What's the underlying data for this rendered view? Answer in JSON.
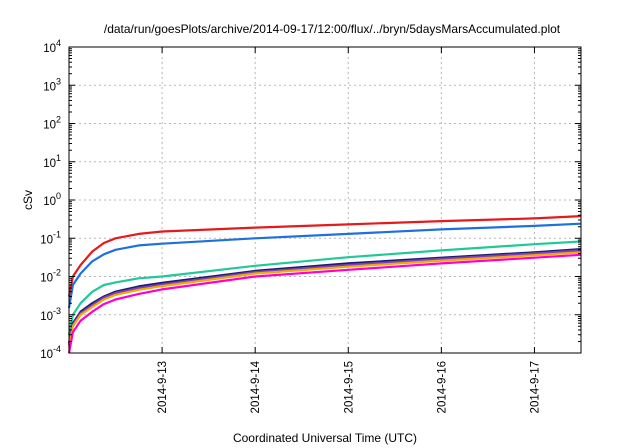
{
  "chart_data": {
    "type": "line",
    "title": "/data/run/goesPlots/archive/2014-09-17/12:00/flux/../bryn/5daysMarsAccumulated.plot",
    "xlabel": "Coordinated Universal Time (UTC)",
    "ylabel": "cSv",
    "x_range": [
      "2014-09-12",
      "2014-09-17 12:00"
    ],
    "x_ticks": [
      "2014-9-13",
      "2014-9-14",
      "2014-9-15",
      "2014-9-16",
      "2014-9-17"
    ],
    "y_scale": "log",
    "ylim": [
      0.0001,
      10000
    ],
    "y_ticks": [
      {
        "base": "10",
        "exp": "-4"
      },
      {
        "base": "10",
        "exp": "-3"
      },
      {
        "base": "10",
        "exp": "-2"
      },
      {
        "base": "10",
        "exp": "-1"
      },
      {
        "base": "10",
        "exp": "0"
      },
      {
        "base": "10",
        "exp": "1"
      },
      {
        "base": "10",
        "exp": "2"
      },
      {
        "base": "10",
        "exp": "3"
      },
      {
        "base": "10",
        "exp": "4"
      }
    ],
    "grid": true,
    "series": [
      {
        "color": "#e41a1c",
        "x": [
          "2014-09-12 00:00",
          "2014-09-12 01:00",
          "2014-09-12 03:00",
          "2014-09-12 06:00",
          "2014-09-12 09:00",
          "2014-09-12 12:00",
          "2014-09-12 18:00",
          "2014-09-13 00:00",
          "2014-09-14 00:00",
          "2014-09-15 00:00",
          "2014-09-16 00:00",
          "2014-09-17 00:00",
          "2014-09-17 12:00"
        ],
        "y": [
          0.003,
          0.01,
          0.02,
          0.045,
          0.075,
          0.1,
          0.13,
          0.15,
          0.19,
          0.23,
          0.28,
          0.33,
          0.38
        ]
      },
      {
        "color": "#1e6fe0",
        "x": [
          "2014-09-12 00:00",
          "2014-09-12 01:00",
          "2014-09-12 03:00",
          "2014-09-12 06:00",
          "2014-09-12 09:00",
          "2014-09-12 12:00",
          "2014-09-12 18:00",
          "2014-09-13 00:00",
          "2014-09-14 00:00",
          "2014-09-15 00:00",
          "2014-09-16 00:00",
          "2014-09-17 00:00",
          "2014-09-17 12:00"
        ],
        "y": [
          0.0015,
          0.006,
          0.012,
          0.025,
          0.038,
          0.05,
          0.065,
          0.072,
          0.1,
          0.13,
          0.17,
          0.21,
          0.24
        ]
      },
      {
        "color": "#20c997",
        "x": [
          "2014-09-12 00:00",
          "2014-09-12 01:00",
          "2014-09-12 03:00",
          "2014-09-12 06:00",
          "2014-09-12 09:00",
          "2014-09-12 12:00",
          "2014-09-12 18:00",
          "2014-09-13 00:00",
          "2014-09-14 00:00",
          "2014-09-15 00:00",
          "2014-09-16 00:00",
          "2014-09-17 00:00",
          "2014-09-17 12:00"
        ],
        "y": [
          0.0003,
          0.001,
          0.002,
          0.004,
          0.006,
          0.007,
          0.009,
          0.01,
          0.019,
          0.032,
          0.048,
          0.07,
          0.082
        ]
      },
      {
        "color": "#1b1b6e",
        "x": [
          "2014-09-12 00:00",
          "2014-09-12 01:00",
          "2014-09-12 03:00",
          "2014-09-12 06:00",
          "2014-09-12 09:00",
          "2014-09-12 12:00",
          "2014-09-12 18:00",
          "2014-09-13 00:00",
          "2014-09-14 00:00",
          "2014-09-15 00:00",
          "2014-09-16 00:00",
          "2014-09-17 00:00",
          "2014-09-17 12:00"
        ],
        "y": [
          0.00018,
          0.0006,
          0.0012,
          0.002,
          0.003,
          0.004,
          0.0055,
          0.0068,
          0.014,
          0.022,
          0.031,
          0.043,
          0.052
        ]
      },
      {
        "color": "#7b3fbf",
        "x": [
          "2014-09-12 00:00",
          "2014-09-12 01:00",
          "2014-09-12 03:00",
          "2014-09-12 06:00",
          "2014-09-12 09:00",
          "2014-09-12 12:00",
          "2014-09-12 18:00",
          "2014-09-13 00:00",
          "2014-09-14 00:00",
          "2014-09-15 00:00",
          "2014-09-16 00:00",
          "2014-09-17 00:00",
          "2014-09-17 12:00"
        ],
        "y": [
          0.00016,
          0.00055,
          0.0011,
          0.0018,
          0.0028,
          0.0037,
          0.005,
          0.0062,
          0.013,
          0.02,
          0.029,
          0.04,
          0.048
        ]
      },
      {
        "color": "#f2a900",
        "x": [
          "2014-09-12 00:00",
          "2014-09-12 01:00",
          "2014-09-12 03:00",
          "2014-09-12 06:00",
          "2014-09-12 09:00",
          "2014-09-12 12:00",
          "2014-09-12 18:00",
          "2014-09-13 00:00",
          "2014-09-14 00:00",
          "2014-09-15 00:00",
          "2014-09-16 00:00",
          "2014-09-17 00:00",
          "2014-09-17 12:00"
        ],
        "y": [
          0.00014,
          0.0005,
          0.001,
          0.0016,
          0.0025,
          0.0033,
          0.0045,
          0.0056,
          0.012,
          0.018,
          0.026,
          0.036,
          0.043
        ]
      },
      {
        "color": "#ff00cc",
        "x": [
          "2014-09-12 00:00",
          "2014-09-12 01:00",
          "2014-09-12 03:00",
          "2014-09-12 06:00",
          "2014-09-12 09:00",
          "2014-09-12 12:00",
          "2014-09-12 18:00",
          "2014-09-13 00:00",
          "2014-09-14 00:00",
          "2014-09-15 00:00",
          "2014-09-16 00:00",
          "2014-09-17 00:00",
          "2014-09-17 12:00"
        ],
        "y": [
          0.0001,
          0.00035,
          0.0007,
          0.0012,
          0.0019,
          0.0025,
          0.0035,
          0.0046,
          0.01,
          0.015,
          0.022,
          0.031,
          0.037
        ]
      }
    ]
  }
}
